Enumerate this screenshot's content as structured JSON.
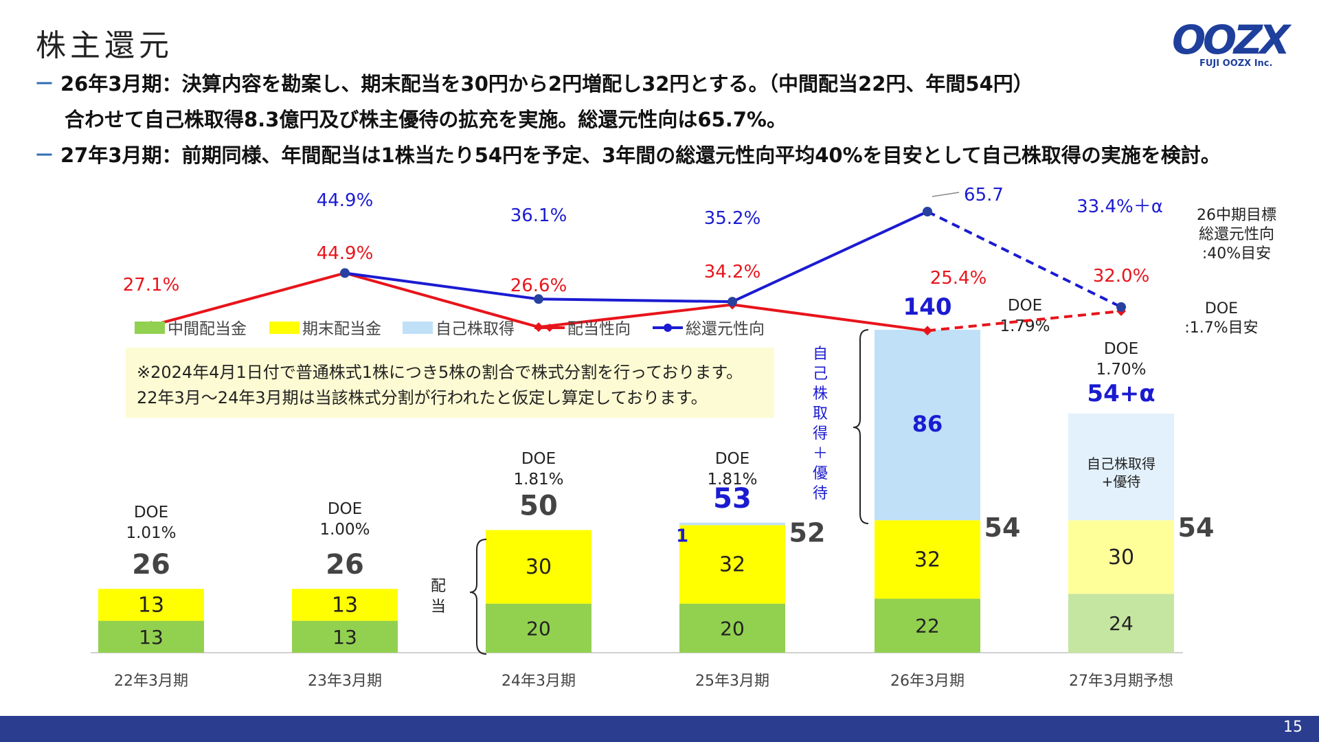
{
  "page": {
    "title": "株主還元",
    "page_number": "15",
    "brand": {
      "logo_text": "OOZX",
      "logo_sub": "FUJI OOZX Inc.",
      "color": "#1f3f9c"
    },
    "bullets": [
      "26年3月期：決算内容を勘案し、期末配当を30円から2円増配し32円とする。（中間配当22円、年間54円）",
      "合わせて自己株取得8.3億円及び株主優待の拡充を実施。総還元性向は65.7%。",
      "27年3月期：前期同様、年間配当は1株当たり54円を予定、3年間の総還元性向平均40%を目安として自己株取得の実施を検討。"
    ],
    "bullet_dash": "－",
    "note": "※2024年4月1日付で普通株式1株につき5株の割合で株式分割を行っております。22年3月～24年3月期は当該株式分割が行われたと仮定し算定しております。",
    "target_note": [
      "26中期目標",
      "総還元性向",
      ":40%目安"
    ],
    "doe_target": [
      "DOE",
      ":1.7%目安"
    ],
    "bracket_haito": "配当",
    "bracket_jiko": "自己株取得＋優待",
    "colors": {
      "interim": "#92d050",
      "final": "#ffff00",
      "buyback": "#bfe0f7",
      "payout_line": "#e8141b",
      "total_line": "#1b1bd1",
      "footer": "#2a3d8f"
    }
  },
  "chart_data": {
    "type": "bar",
    "categories": [
      "22年3月期",
      "23年3月期",
      "24年3月期",
      "25年3月期",
      "26年3月期",
      "27年3月期予想"
    ],
    "legend": [
      "中間配当金",
      "期末配当金",
      "自己株取得",
      "配当性向",
      "総還元性向"
    ],
    "series": [
      {
        "name": "中間配当金",
        "values": [
          13,
          13,
          20,
          20,
          22,
          24
        ]
      },
      {
        "name": "期末配当金",
        "values": [
          13,
          13,
          30,
          32,
          32,
          30
        ]
      },
      {
        "name": "自己株取得",
        "values": [
          0,
          0,
          0,
          1,
          86,
          null
        ]
      }
    ],
    "buyback_labels": [
      "",
      "",
      "",
      "1",
      "86",
      "自己株取得\n+優待"
    ],
    "dividend_totals": [
      "26",
      "26",
      "50",
      "52",
      "54",
      "54"
    ],
    "bar_totals": [
      "26",
      "26",
      "50",
      "53",
      "140",
      "54+α"
    ],
    "doe": [
      "DOE\n1.01%",
      "DOE\n1.00%",
      "DOE\n1.81%",
      "DOE\n1.81%",
      "DOE\n1.79%",
      "DOE\n1.70%"
    ],
    "lines": [
      {
        "name": "配当性向",
        "values": [
          27.1,
          44.9,
          26.6,
          34.2,
          25.4,
          32.0
        ],
        "labels": [
          "27.1%",
          "44.9%",
          "26.6%",
          "34.2%",
          "25.4%",
          "32.0%"
        ]
      },
      {
        "name": "総還元性向",
        "values": [
          null,
          44.9,
          36.1,
          35.2,
          65.7,
          33.4
        ],
        "labels": [
          "",
          "44.9%",
          "36.1%",
          "35.2%",
          "65.7",
          "33.4%＋α"
        ]
      }
    ],
    "forecast_last_point": true
  }
}
